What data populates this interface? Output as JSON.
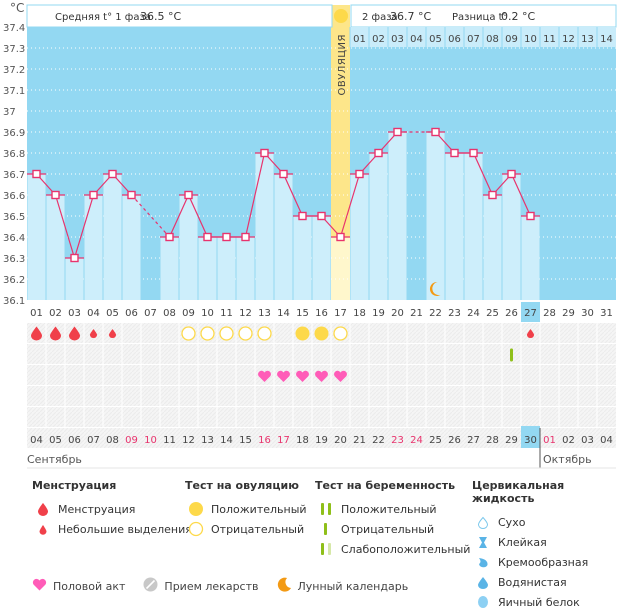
{
  "header": {
    "unit": "°C",
    "phase1_label": "Средняя t° 1 фаза",
    "phase1_value": "36.5 °C",
    "phase2_label": "2 фаза",
    "phase2_value": "36.7 °C",
    "diff_label": "Разница t°",
    "diff_value": "0.2 °C",
    "ovulation_label": "ОВУЛЯЦИЯ"
  },
  "chart_data": {
    "type": "line",
    "title": "",
    "ylabel": "°C",
    "ylim": [
      36.1,
      37.4
    ],
    "yticks": [
      "37.4",
      "37.3",
      "37.2",
      "37.1",
      "37",
      "36.9",
      "36.8",
      "36.7",
      "36.6",
      "36.5",
      "36.4",
      "36.3",
      "36.2",
      "36.1"
    ],
    "cycle_days": [
      "01",
      "02",
      "03",
      "04",
      "05",
      "06",
      "07",
      "08",
      "09",
      "10",
      "11",
      "12",
      "13",
      "14",
      "15",
      "16",
      "17",
      "18",
      "19",
      "20",
      "21",
      "22",
      "23",
      "24",
      "25",
      "26",
      "27",
      "28",
      "29",
      "30",
      "31"
    ],
    "today_cycle_day": "27",
    "ovulation_day": "17",
    "post_ovulation_days": [
      "01",
      "02",
      "03",
      "04",
      "05",
      "06",
      "07",
      "08",
      "09",
      "10",
      "11",
      "12",
      "13",
      "14"
    ],
    "temperatures": [
      36.7,
      36.6,
      36.3,
      36.6,
      36.7,
      36.6,
      null,
      36.4,
      36.6,
      36.4,
      36.4,
      36.4,
      36.8,
      36.7,
      36.5,
      36.5,
      36.4,
      36.7,
      36.8,
      36.9,
      null,
      36.9,
      36.8,
      36.8,
      36.6,
      36.7,
      36.5,
      null,
      null,
      null,
      null
    ],
    "moon_day": "22",
    "grid": true
  },
  "markers": {
    "menstruation": [
      {
        "day": "01",
        "type": "heavy"
      },
      {
        "day": "02",
        "type": "heavy"
      },
      {
        "day": "03",
        "type": "heavy"
      },
      {
        "day": "04",
        "type": "light"
      },
      {
        "day": "05",
        "type": "light"
      },
      {
        "day": "27",
        "type": "light"
      }
    ],
    "ovulation_tests": [
      {
        "day": "09",
        "result": "negative"
      },
      {
        "day": "10",
        "result": "negative"
      },
      {
        "day": "11",
        "result": "negative"
      },
      {
        "day": "12",
        "result": "negative"
      },
      {
        "day": "13",
        "result": "negative"
      },
      {
        "day": "15",
        "result": "positive"
      },
      {
        "day": "16",
        "result": "positive"
      },
      {
        "day": "17",
        "result": "negative"
      }
    ],
    "pregnancy_tests": [
      {
        "day": "26",
        "result": "negative"
      }
    ],
    "intercourse": [
      "13",
      "14",
      "15",
      "16",
      "17"
    ]
  },
  "calendar": {
    "dates": [
      "04",
      "05",
      "06",
      "07",
      "08",
      "09",
      "10",
      "11",
      "12",
      "13",
      "14",
      "15",
      "16",
      "17",
      "18",
      "19",
      "20",
      "21",
      "22",
      "23",
      "24",
      "25",
      "26",
      "27",
      "28",
      "29",
      "30",
      "01",
      "02",
      "03",
      "04"
    ],
    "weekend_dates_idx": [
      5,
      6,
      12,
      13,
      19,
      20,
      27
    ],
    "today_idx": 26,
    "month1": "Сентябрь",
    "month2": "Октябрь"
  },
  "legend": {
    "menstruation": {
      "title": "Менструация",
      "items": [
        "Менструация",
        "Небольшие выделения"
      ]
    },
    "ovulation_test": {
      "title": "Тест на овуляцию",
      "items": [
        "Положительный",
        "Отрицательный"
      ]
    },
    "pregnancy_test": {
      "title": "Тест на беременность",
      "items": [
        "Положительный",
        "Отрицательный",
        "Слабоположительный"
      ]
    },
    "cervical": {
      "title": "Цервикальная жидкость",
      "items": [
        "Сухо",
        "Клейкая",
        "Кремообразная",
        "Водянистая",
        "Яичный белок"
      ]
    },
    "bottom": [
      "Половой акт",
      "Прием лекарств",
      "Лунный календарь"
    ]
  },
  "colors": {
    "sky": "#93d8f2",
    "bar": "#cdeefb",
    "line": "#e8336d",
    "ovulation": "#fde68a",
    "blood": "#f0404a",
    "heart": "#ff5cb8",
    "yellow": "#fdd94a",
    "green": "#8fbf1a",
    "moon": "#f39a14",
    "weekend": "#e8336d"
  }
}
